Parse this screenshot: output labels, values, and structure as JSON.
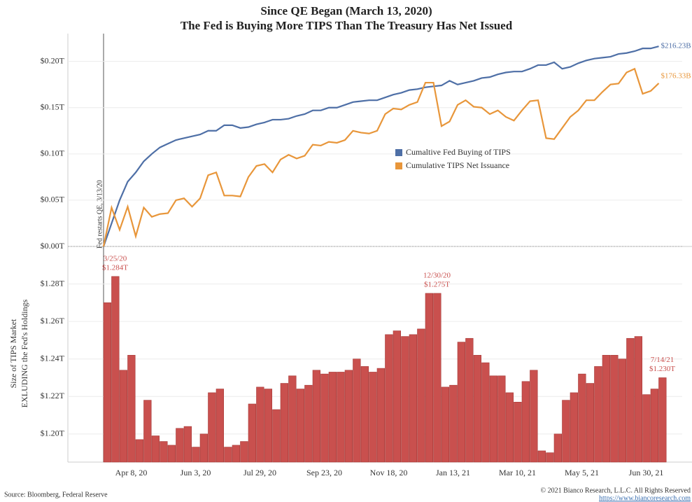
{
  "chart_data": [
    {
      "type": "line",
      "title": "Since QE Began (March 13, 2020)",
      "subtitle": "The Fed is Buying More TIPS Than The Treasury Has Net Issued",
      "annotation": "Fed restarts QE, 3/13/20",
      "ylim": [
        0,
        0.23
      ],
      "yticks": [
        {
          "value": 0,
          "label": "$0.00T"
        },
        {
          "value": 0.05,
          "label": "$0.05T"
        },
        {
          "value": 0.1,
          "label": "$0.10T"
        },
        {
          "value": 0.15,
          "label": "$0.15T"
        },
        {
          "value": 0.2,
          "label": "$0.20T"
        }
      ],
      "grid": true,
      "legend": "center",
      "series": [
        {
          "name": "Cumaltive Fed Buying of TIPS",
          "color": "#4e6fa6",
          "values": [
            0,
            0.025,
            0.05,
            0.07,
            0.08,
            0.092,
            0.1,
            0.107,
            0.111,
            0.115,
            0.117,
            0.119,
            0.121,
            0.125,
            0.125,
            0.131,
            0.131,
            0.128,
            0.129,
            0.132,
            0.134,
            0.137,
            0.137,
            0.138,
            0.141,
            0.143,
            0.147,
            0.147,
            0.15,
            0.15,
            0.153,
            0.156,
            0.157,
            0.158,
            0.158,
            0.161,
            0.164,
            0.166,
            0.169,
            0.17,
            0.172,
            0.173,
            0.174,
            0.179,
            0.175,
            0.177,
            0.179,
            0.182,
            0.183,
            0.186,
            0.188,
            0.189,
            0.189,
            0.192,
            0.196,
            0.196,
            0.199,
            0.192,
            0.194,
            0.198,
            0.201,
            0.203,
            0.204,
            0.205,
            0.208,
            0.209,
            0.211,
            0.214,
            0.214,
            0.21623
          ],
          "value_labels": [
            null,
            null,
            null,
            null,
            null,
            null,
            null,
            null,
            null,
            null,
            null,
            null,
            null,
            null,
            null,
            null,
            null,
            null,
            null,
            null,
            null,
            null,
            null,
            null,
            null,
            null,
            null,
            null,
            null,
            null,
            null,
            null,
            null,
            null,
            null,
            null,
            null,
            null,
            null,
            null,
            null,
            null,
            null,
            null,
            null,
            null,
            null,
            null,
            null,
            null,
            null,
            null,
            null,
            null,
            null,
            null,
            null,
            null,
            null,
            null,
            null,
            null,
            null,
            null,
            null,
            null,
            null,
            null,
            null,
            "$216.23B"
          ]
        },
        {
          "name": "Cumulative TIPS Net Issuance",
          "color": "#e8963a",
          "values": [
            0,
            0.042,
            0.018,
            0.043,
            0.011,
            0.042,
            0.032,
            0.035,
            0.036,
            0.05,
            0.052,
            0.043,
            0.052,
            0.077,
            0.08,
            0.055,
            0.055,
            0.054,
            0.075,
            0.087,
            0.089,
            0.08,
            0.094,
            0.099,
            0.095,
            0.098,
            0.11,
            0.109,
            0.113,
            0.112,
            0.115,
            0.125,
            0.123,
            0.122,
            0.125,
            0.143,
            0.149,
            0.148,
            0.153,
            0.156,
            0.177,
            0.177,
            0.13,
            0.135,
            0.153,
            0.158,
            0.151,
            0.15,
            0.143,
            0.147,
            0.14,
            0.136,
            0.147,
            0.157,
            0.158,
            0.117,
            0.116,
            0.128,
            0.14,
            0.147,
            0.158,
            0.158,
            0.167,
            0.175,
            0.176,
            0.188,
            0.192,
            0.165,
            0.168,
            0.17633
          ],
          "value_labels": [
            null,
            null,
            null,
            null,
            null,
            null,
            null,
            null,
            null,
            null,
            null,
            null,
            null,
            null,
            null,
            null,
            null,
            null,
            null,
            null,
            null,
            null,
            null,
            null,
            null,
            null,
            null,
            null,
            null,
            null,
            null,
            null,
            null,
            null,
            null,
            null,
            null,
            null,
            null,
            null,
            null,
            null,
            null,
            null,
            null,
            null,
            null,
            null,
            null,
            null,
            null,
            null,
            null,
            null,
            null,
            null,
            null,
            null,
            null,
            null,
            null,
            null,
            null,
            null,
            null,
            null,
            null,
            null,
            null,
            "$176.33B"
          ]
        }
      ]
    },
    {
      "type": "bar",
      "ylabel": [
        "Size of TIPS Market",
        "EXLUDING the Fed's Holdings"
      ],
      "color": "#c9504e",
      "ylim": [
        1.185,
        1.3
      ],
      "yticks": [
        {
          "value": 1.2,
          "label": "$1.20T"
        },
        {
          "value": 1.22,
          "label": "$1.22T"
        },
        {
          "value": 1.24,
          "label": "$1.24T"
        },
        {
          "value": 1.26,
          "label": "$1.26T"
        },
        {
          "value": 1.28,
          "label": "$1.28T"
        }
      ],
      "categories": [
        null,
        null,
        null,
        "Apr 8, 20",
        null,
        null,
        null,
        null,
        null,
        null,
        null,
        "Jun 3, 20",
        null,
        null,
        null,
        null,
        null,
        null,
        null,
        "Jul 29, 20",
        null,
        null,
        null,
        null,
        null,
        null,
        null,
        "Sep 23, 20",
        null,
        null,
        null,
        null,
        null,
        null,
        null,
        "Nov 18, 20",
        null,
        null,
        null,
        null,
        null,
        null,
        null,
        "Jan 13, 21",
        null,
        null,
        null,
        null,
        null,
        null,
        null,
        "Mar 10, 21",
        null,
        null,
        null,
        null,
        null,
        null,
        null,
        "May 5, 21",
        null,
        null,
        null,
        null,
        null,
        null,
        null,
        "Jun 30, 21",
        null,
        null
      ],
      "values": [
        1.27,
        1.284,
        1.234,
        1.242,
        1.197,
        1.218,
        1.199,
        1.196,
        1.194,
        1.203,
        1.204,
        1.193,
        1.2,
        1.222,
        1.224,
        1.193,
        1.194,
        1.196,
        1.216,
        1.225,
        1.224,
        1.213,
        1.227,
        1.231,
        1.224,
        1.226,
        1.234,
        1.232,
        1.233,
        1.233,
        1.234,
        1.24,
        1.236,
        1.233,
        1.235,
        1.253,
        1.255,
        1.252,
        1.253,
        1.256,
        1.275,
        1.275,
        1.225,
        1.226,
        1.249,
        1.251,
        1.242,
        1.238,
        1.231,
        1.231,
        1.222,
        1.217,
        1.228,
        1.234,
        1.191,
        1.19,
        1.2,
        1.218,
        1.222,
        1.232,
        1.227,
        1.236,
        1.242,
        1.242,
        1.24,
        1.251,
        1.252,
        1.221,
        1.224,
        1.23
      ],
      "point_labels": [
        null,
        "3/25/20",
        null,
        null,
        null,
        null,
        null,
        null,
        null,
        null,
        null,
        null,
        null,
        null,
        null,
        null,
        null,
        null,
        null,
        null,
        null,
        null,
        null,
        null,
        null,
        null,
        null,
        null,
        null,
        null,
        null,
        null,
        null,
        null,
        null,
        null,
        null,
        null,
        null,
        null,
        null,
        "12/30/20",
        null,
        null,
        null,
        null,
        null,
        null,
        null,
        null,
        null,
        null,
        null,
        null,
        null,
        null,
        null,
        null,
        null,
        null,
        null,
        null,
        null,
        null,
        null,
        null,
        null,
        null,
        null,
        "7/14/21"
      ],
      "value_labels": [
        null,
        "$1.284T",
        null,
        null,
        null,
        null,
        null,
        null,
        null,
        null,
        null,
        null,
        null,
        null,
        null,
        null,
        null,
        null,
        null,
        null,
        null,
        null,
        null,
        null,
        null,
        null,
        null,
        null,
        null,
        null,
        null,
        null,
        null,
        null,
        null,
        null,
        null,
        null,
        null,
        null,
        null,
        "$1.275T",
        null,
        null,
        null,
        null,
        null,
        null,
        null,
        null,
        null,
        null,
        null,
        null,
        null,
        null,
        null,
        null,
        null,
        null,
        null,
        null,
        null,
        null,
        null,
        null,
        null,
        null,
        null,
        "$1.230T"
      ]
    }
  ],
  "source": "Source: Bloomberg, Federal Reserve",
  "copyright": "© 2021 Bianco Research, L.L.C. All Rights Reserved",
  "url": "https://www.biancoresearch.com"
}
